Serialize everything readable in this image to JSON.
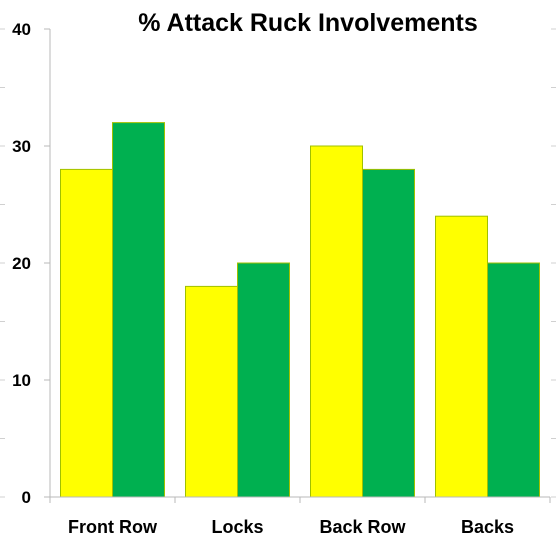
{
  "chart_data": {
    "type": "bar",
    "title": "% Attack Ruck Involvements",
    "xlabel": "",
    "ylabel": "",
    "categories": [
      "Front Row",
      "Locks",
      "Back Row",
      "Backs"
    ],
    "series": [
      {
        "color": "#ffff00",
        "values": [
          28,
          18,
          30,
          24
        ]
      },
      {
        "color": "#00b050",
        "values": [
          32,
          20,
          28,
          20
        ]
      }
    ],
    "ylim": [
      0,
      40
    ],
    "yticks": [
      0,
      10,
      20,
      30,
      40
    ],
    "grid": false,
    "legend": "none",
    "bar_outline_color": "#a0c000"
  }
}
